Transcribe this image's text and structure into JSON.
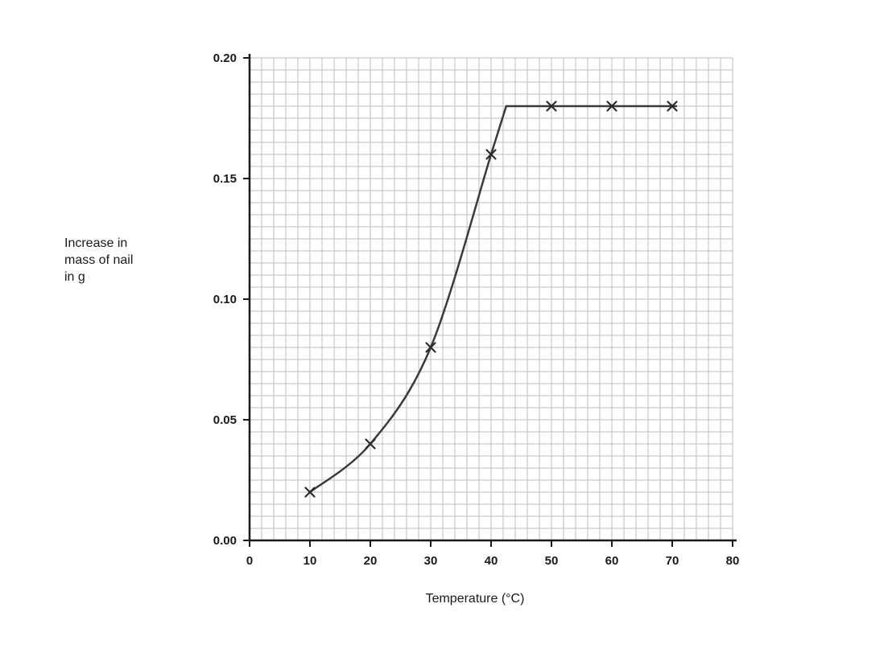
{
  "chart_data": {
    "type": "line",
    "title": "",
    "xlabel": "Temperature (°C)",
    "ylabel_lines": [
      "Increase in",
      "mass of nail",
      "in g"
    ],
    "x": [
      10,
      20,
      30,
      40,
      50,
      60,
      70
    ],
    "y": [
      0.02,
      0.04,
      0.08,
      0.16,
      0.18,
      0.18,
      0.18
    ],
    "xlim": [
      0,
      80
    ],
    "ylim": [
      0,
      0.2
    ],
    "x_ticks": [
      0,
      10,
      20,
      30,
      40,
      50,
      60,
      70,
      80
    ],
    "x_tick_labels": [
      "0",
      "10",
      "20",
      "30",
      "40",
      "50",
      "60",
      "70",
      "80"
    ],
    "y_ticks": [
      0,
      0.05,
      0.1,
      0.15,
      0.2
    ],
    "y_tick_labels": [
      "0.00",
      "0.05",
      "0.10",
      "0.15",
      "0.20"
    ],
    "grid": true,
    "minor_grid": {
      "x_step": 2,
      "y_step": 0.005
    },
    "marker": "x",
    "plateau_start_x": 42.5,
    "plateau_value": 0.18,
    "legend": "none",
    "colors": {
      "curve": "#3a3a3a",
      "marker": "#2a2a2a",
      "grid": "#bdbdbd",
      "axis": "#1a1a1a"
    }
  }
}
